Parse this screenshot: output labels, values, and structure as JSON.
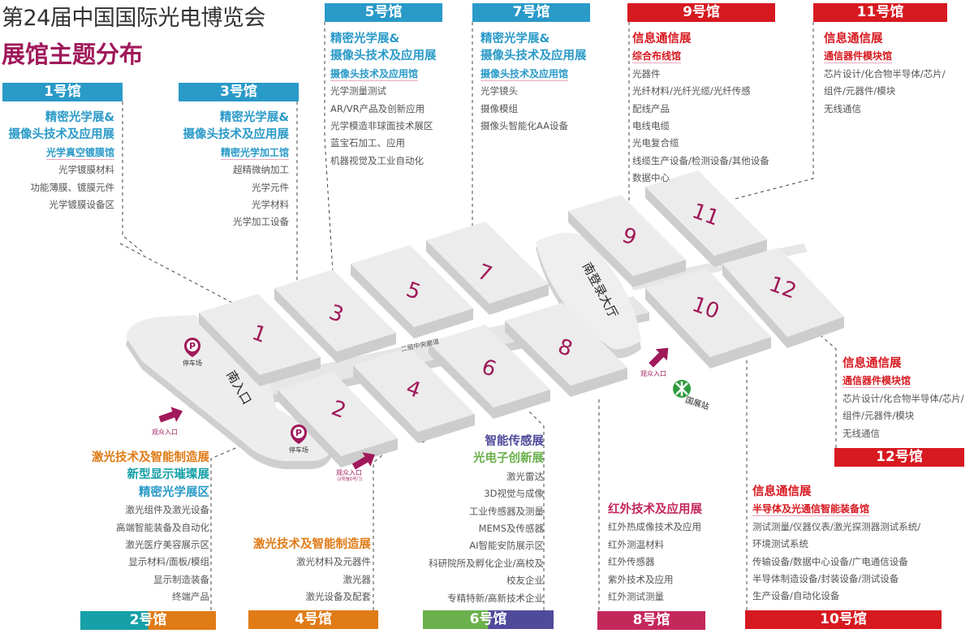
{
  "header": {
    "event_title": "第24届中国国际光电博览会",
    "subtitle": "展馆主题分布"
  },
  "colors": {
    "blue": "#2a9ac8",
    "red": "#d71920",
    "orange": "#e07b16",
    "teal": "#16a0a8",
    "green": "#6ab04c",
    "purple": "#4f4a9a",
    "crimson": "#c4285a",
    "magenta": "#a0195a"
  },
  "halls": {
    "h1": {
      "label": "1号馆",
      "bar": [
        "#2a9ac8"
      ],
      "titles": [
        {
          "text": "精密光学展&",
          "color": "#2a9ac8"
        },
        {
          "text": "摄像头技术及应用展",
          "color": "#2a9ac8"
        }
      ],
      "sub": {
        "text": "光学真空镀膜馆",
        "color": "#2a9ac8"
      },
      "items": [
        "光学镀膜材料",
        "功能薄膜、镀膜元件",
        "光学镀膜设备区"
      ]
    },
    "h3": {
      "label": "3号馆",
      "bar": [
        "#2a9ac8"
      ],
      "titles": [
        {
          "text": "精密光学展&",
          "color": "#2a9ac8"
        },
        {
          "text": "摄像头技术及应用展",
          "color": "#2a9ac8"
        }
      ],
      "sub": {
        "text": "精密光学加工馆",
        "color": "#2a9ac8"
      },
      "items": [
        "超精微纳加工",
        "光学元件",
        "光学材料",
        "光学加工设备"
      ]
    },
    "h5": {
      "label": "5号馆",
      "bar": [
        "#2a9ac8"
      ],
      "titles": [
        {
          "text": "精密光学展&",
          "color": "#2a9ac8"
        },
        {
          "text": "摄像头技术及应用展",
          "color": "#2a9ac8"
        }
      ],
      "sub": {
        "text": "摄像头技术及应用馆",
        "color": "#2a9ac8"
      },
      "items": [
        "光学测量测试",
        "AR/VR产品及创新应用",
        "光学模造非球面技术展区",
        "蓝宝石加工、应用",
        "机器视觉及工业自动化"
      ]
    },
    "h7": {
      "label": "7号馆",
      "bar": [
        "#2a9ac8"
      ],
      "titles": [
        {
          "text": "精密光学展&",
          "color": "#2a9ac8"
        },
        {
          "text": "摄像头技术及应用展",
          "color": "#2a9ac8"
        }
      ],
      "sub": {
        "text": "摄像头技术及应用馆",
        "color": "#2a9ac8"
      },
      "items": [
        "光学镜头",
        "摄像模组",
        "摄像头智能化AA设备"
      ]
    },
    "h9": {
      "label": "9号馆",
      "bar": [
        "#d71920"
      ],
      "titles": [
        {
          "text": "信息通信展",
          "color": "#d71920"
        }
      ],
      "sub": {
        "text": "综合布线馆",
        "color": "#d71920"
      },
      "items": [
        "光器件",
        "光纤材料/光纤光缆/光纤传感",
        "配线产品",
        "电线电缆",
        "光电复合缆",
        "线缆生产设备/检测设备/其他设备",
        "数据中心"
      ]
    },
    "h11": {
      "label": "11号馆",
      "bar": [
        "#d71920"
      ],
      "titles": [
        {
          "text": "信息通信展",
          "color": "#d71920"
        }
      ],
      "sub": {
        "text": "通信器件模块馆",
        "color": "#d71920"
      },
      "items": [
        "芯片设计/化合物半导体/芯片/",
        "组件/元器件/模块",
        "无线通信"
      ]
    },
    "h12": {
      "label": "12号馆",
      "bar": [
        "#d71920"
      ],
      "titles": [
        {
          "text": "信息通信展",
          "color": "#d71920"
        }
      ],
      "sub": {
        "text": "通信器件模块馆",
        "color": "#d71920"
      },
      "items": [
        "芯片设计/化合物半导体/芯片/",
        "组件/元器件/模块",
        "无线通信"
      ]
    },
    "h10": {
      "label": "10号馆",
      "bar": [
        "#d71920"
      ],
      "titles": [
        {
          "text": "信息通信展",
          "color": "#d71920"
        }
      ],
      "sub": {
        "text": "半导体及光通信智能装备馆",
        "color": "#d71920"
      },
      "items": [
        "测试测量/仪器仪表/激光探测器测试系统/",
        "环境测试系统",
        "传输设备/数据中心设备/广电通信设备",
        "半导体制造设备/封装设备/测试设备",
        "生产设备/自动化设备"
      ]
    },
    "h2": {
      "label": "2号馆",
      "bar": [
        "#16a0a8",
        "#e07b16"
      ],
      "titles": [
        {
          "text": "激光技术及智能制造展",
          "color": "#e07b16"
        },
        {
          "text": "新型显示璀璨展",
          "color": "#16a0a8"
        },
        {
          "text": "精密光学展区",
          "color": "#2a9ac8"
        }
      ],
      "items": [
        "激光组件及激光设备",
        "高端智能装备及自动化",
        "激光医疗美容展示区",
        "显示材料/面板/模组",
        "显示制造装备",
        "终端产品"
      ]
    },
    "h4": {
      "label": "4号馆",
      "bar": [
        "#e07b16"
      ],
      "titles": [
        {
          "text": "激光技术及智能制造展",
          "color": "#e07b16"
        }
      ],
      "items": [
        "激光材料及元器件",
        "激光器",
        "激光设备及配套"
      ]
    },
    "h6": {
      "label": "6号馆",
      "bar": [
        "#6ab04c",
        "#4f4a9a"
      ],
      "titles": [
        {
          "text": "智能传感展",
          "color": "#4f4a9a"
        },
        {
          "text": "光电子创新展",
          "color": "#6ab04c"
        }
      ],
      "items": [
        "激光雷达",
        "3D视觉与成像",
        "工业传感器及测量",
        "MEMS及传感器",
        "AI智能安防展示区",
        "科研院所及孵化企业/高校及",
        "校友企业",
        "专精特新/高新技术企业"
      ]
    },
    "h8": {
      "label": "8号馆",
      "bar": [
        "#c4285a"
      ],
      "titles": [
        {
          "text": "红外技术及应用展",
          "color": "#c4285a"
        }
      ],
      "items": [
        "红外热成像技术及应用",
        "红外测温材料",
        "红外传感器",
        "紫外技术及应用",
        "红外测试测量"
      ]
    }
  },
  "map": {
    "hall_numbers": [
      "1",
      "2",
      "3",
      "4",
      "5",
      "6",
      "7",
      "8",
      "9",
      "10",
      "11",
      "12"
    ],
    "south_entrance": "南入口",
    "south_lobby": "南登录大厅",
    "corridor": "二层中央廊道",
    "parking": "停车场",
    "audience_entrance": "观众入口",
    "entrance_note": "(2号馆D号门)",
    "metro_station": "国展站",
    "icons": [
      "parking-icon",
      "arrow-icon",
      "metro-icon"
    ]
  }
}
